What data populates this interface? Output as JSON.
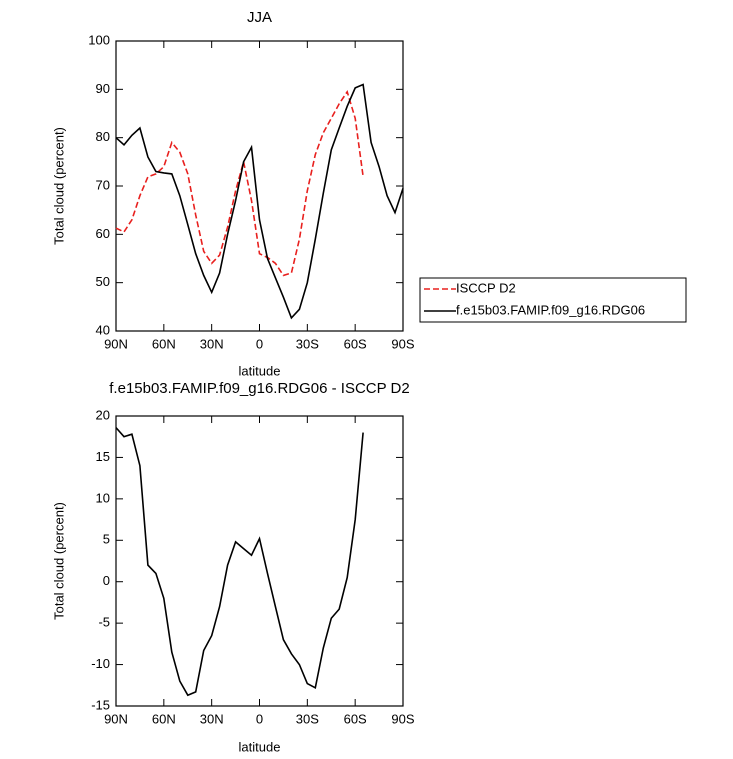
{
  "chart_data": [
    {
      "type": "line",
      "title": "JJA",
      "xlabel": "latitude",
      "ylabel": "Total cloud (percent)",
      "x": [
        90,
        85,
        80,
        75,
        70,
        65,
        60,
        55,
        50,
        45,
        40,
        35,
        30,
        25,
        20,
        15,
        10,
        5,
        0,
        -5,
        -10,
        -15,
        -20,
        -25,
        -30,
        -35,
        -40,
        -45,
        -50,
        -55,
        -60,
        -65,
        -70,
        -75,
        -80,
        -85,
        -90
      ],
      "series": [
        {
          "name": "ISCCP D2",
          "color": "#e8201e",
          "style": "dashed",
          "values": [
            61.3,
            60.5,
            63,
            68,
            71.9,
            72.5,
            74,
            79,
            77,
            72.5,
            64,
            56.5,
            54,
            55.7,
            61.5,
            69,
            75,
            67,
            56,
            55.2,
            54,
            51.5,
            52,
            59,
            69,
            76.5,
            81,
            84,
            87,
            89.5,
            84,
            72,
            null,
            null,
            null,
            null,
            null
          ]
        },
        {
          "name": "f.e15b03.FAMIP.f09_g16.RDG06",
          "color": "#000000",
          "style": "solid",
          "values": [
            80,
            78.5,
            80.5,
            82,
            76,
            73,
            72.7,
            72.5,
            68,
            62,
            56,
            51.5,
            48,
            52,
            60,
            67,
            75,
            78,
            63,
            55,
            51,
            47,
            42.7,
            44.5,
            50,
            59,
            68.5,
            77.5,
            82,
            86.5,
            90.3,
            91,
            79,
            74,
            68,
            64.5,
            69.5
          ]
        }
      ],
      "xlim": [
        90,
        -90
      ],
      "xticks": [
        {
          "value": 90,
          "label": "90N"
        },
        {
          "value": 60,
          "label": "60N"
        },
        {
          "value": 30,
          "label": "30N"
        },
        0,
        {
          "value": -30,
          "label": "30S"
        },
        {
          "value": -60,
          "label": "60S"
        },
        {
          "value": -90,
          "label": "90S"
        }
      ],
      "ylim": [
        40,
        100
      ],
      "yticks": [
        40,
        50,
        60,
        70,
        80,
        90,
        100
      ],
      "legend": "right"
    },
    {
      "type": "line",
      "title": "f.e15b03.FAMIP.f09_g16.RDG06 - ISCCP D2",
      "xlabel": "latitude",
      "ylabel": "Total cloud (percent)",
      "x": [
        90,
        85,
        80,
        75,
        70,
        65,
        60,
        55,
        50,
        45,
        40,
        35,
        30,
        25,
        20,
        15,
        10,
        5,
        0,
        -5,
        -10,
        -15,
        -20,
        -25,
        -30,
        -35,
        -40,
        -45,
        -50,
        -55,
        -60,
        -65,
        -70,
        -75,
        -80,
        -85,
        -90
      ],
      "series": [
        {
          "color": "#000000",
          "style": "solid",
          "values": [
            18.6,
            17.5,
            17.8,
            14,
            2,
            1,
            -2,
            -8.5,
            -12,
            -13.7,
            -13.3,
            -8.3,
            -6.5,
            -3,
            2,
            4.8,
            4,
            3.2,
            5.2,
            1,
            -3,
            -7,
            -8.7,
            -10,
            -12.3,
            -12.8,
            -8,
            -4.4,
            -3.3,
            0.5,
            7.5,
            18,
            null,
            null,
            null,
            null,
            null
          ]
        }
      ],
      "xlim": [
        90,
        -90
      ],
      "xticks": [
        {
          "value": 90,
          "label": "90N"
        },
        {
          "value": 60,
          "label": "60N"
        },
        {
          "value": 30,
          "label": "30N"
        },
        0,
        {
          "value": -30,
          "label": "30S"
        },
        {
          "value": -60,
          "label": "60S"
        },
        {
          "value": -90,
          "label": "90S"
        }
      ],
      "ylim": [
        -15,
        20
      ],
      "yticks": [
        -15,
        -10,
        -5,
        0,
        5,
        10,
        15,
        20
      ]
    }
  ]
}
